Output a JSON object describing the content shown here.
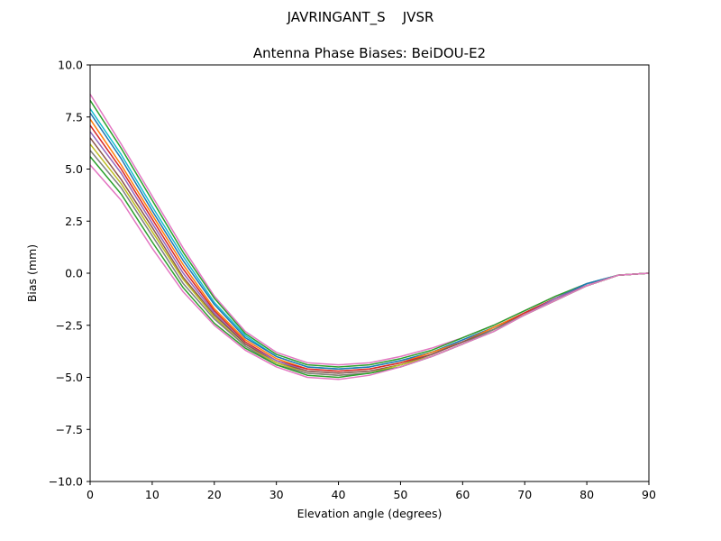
{
  "figure": {
    "suptitle": "JAVRINGANT_S    JVSR"
  },
  "chart_data": {
    "type": "line",
    "title": "Antenna Phase Biases: BeiDOU-E2",
    "xlabel": "Elevation angle (degrees)",
    "ylabel": "Bias (mm)",
    "xlim": [
      0,
      90
    ],
    "ylim": [
      -10,
      10
    ],
    "xticks": [
      0,
      10,
      20,
      30,
      40,
      50,
      60,
      70,
      80,
      90
    ],
    "yticks": [
      10.0,
      7.5,
      5.0,
      2.5,
      0.0,
      -2.5,
      -5.0,
      -7.5,
      -10.0
    ],
    "xtick_labels": [
      "0",
      "10",
      "20",
      "30",
      "40",
      "50",
      "60",
      "70",
      "80",
      "90"
    ],
    "ytick_labels": [
      "10.0",
      "7.5",
      "5.0",
      "2.5",
      "0.0",
      "−2.5",
      "−5.0",
      "−7.5",
      "−10.0"
    ],
    "grid": false,
    "legend": "none",
    "x": [
      0,
      5,
      10,
      15,
      20,
      25,
      30,
      35,
      40,
      45,
      50,
      55,
      60,
      65,
      70,
      75,
      80,
      85,
      90
    ],
    "series": [
      {
        "color": "#e377c2",
        "values": [
          8.6,
          6.2,
          3.7,
          1.2,
          -1.1,
          -2.8,
          -3.8,
          -4.3,
          -4.4,
          -4.3,
          -4.0,
          -3.6,
          -3.1,
          -2.5,
          -1.8,
          -1.1,
          -0.5,
          -0.1,
          0.0
        ]
      },
      {
        "color": "#2ca02c",
        "values": [
          8.3,
          6.0,
          3.5,
          1.0,
          -1.2,
          -2.9,
          -3.9,
          -4.4,
          -4.5,
          -4.4,
          -4.1,
          -3.7,
          -3.1,
          -2.5,
          -1.8,
          -1.1,
          -0.5,
          -0.1,
          0.0
        ]
      },
      {
        "color": "#17becf",
        "values": [
          7.9,
          5.7,
          3.2,
          0.8,
          -1.4,
          -3.0,
          -4.0,
          -4.5,
          -4.6,
          -4.5,
          -4.2,
          -3.8,
          -3.2,
          -2.6,
          -1.9,
          -1.2,
          -0.5,
          -0.1,
          0.0
        ]
      },
      {
        "color": "#1f77b4",
        "values": [
          7.7,
          5.5,
          3.0,
          0.6,
          -1.5,
          -3.1,
          -4.0,
          -4.5,
          -4.6,
          -4.5,
          -4.2,
          -3.8,
          -3.2,
          -2.6,
          -1.9,
          -1.2,
          -0.5,
          -0.1,
          0.0
        ]
      },
      {
        "color": "#ff7f0e",
        "values": [
          7.4,
          5.2,
          2.8,
          0.4,
          -1.7,
          -3.2,
          -4.1,
          -4.6,
          -4.7,
          -4.6,
          -4.3,
          -3.8,
          -3.3,
          -2.6,
          -1.9,
          -1.2,
          -0.6,
          -0.1,
          0.0
        ]
      },
      {
        "color": "#d62728",
        "values": [
          7.1,
          5.0,
          2.6,
          0.2,
          -1.8,
          -3.3,
          -4.2,
          -4.6,
          -4.7,
          -4.6,
          -4.3,
          -3.9,
          -3.3,
          -2.7,
          -1.9,
          -1.2,
          -0.6,
          -0.1,
          0.0
        ]
      },
      {
        "color": "#9467bd",
        "values": [
          6.8,
          4.8,
          2.4,
          0.0,
          -1.9,
          -3.4,
          -4.2,
          -4.7,
          -4.8,
          -4.7,
          -4.4,
          -3.9,
          -3.3,
          -2.7,
          -2.0,
          -1.2,
          -0.6,
          -0.1,
          0.0
        ]
      },
      {
        "color": "#8c564b",
        "values": [
          6.5,
          4.5,
          2.2,
          -0.2,
          -2.0,
          -3.4,
          -4.3,
          -4.7,
          -4.8,
          -4.7,
          -4.4,
          -3.9,
          -3.3,
          -2.7,
          -2.0,
          -1.3,
          -0.6,
          -0.1,
          0.0
        ]
      },
      {
        "color": "#bcbd22",
        "values": [
          6.2,
          4.3,
          2.0,
          -0.3,
          -2.1,
          -3.5,
          -4.3,
          -4.8,
          -4.9,
          -4.8,
          -4.4,
          -4.0,
          -3.4,
          -2.7,
          -2.0,
          -1.3,
          -0.6,
          -0.1,
          0.0
        ]
      },
      {
        "color": "#7f7f7f",
        "values": [
          5.9,
          4.1,
          1.8,
          -0.5,
          -2.2,
          -3.5,
          -4.4,
          -4.8,
          -4.9,
          -4.8,
          -4.5,
          -4.0,
          -3.4,
          -2.7,
          -2.0,
          -1.3,
          -0.6,
          -0.1,
          0.0
        ]
      },
      {
        "color": "#2ca02c",
        "values": [
          5.6,
          3.8,
          1.5,
          -0.7,
          -2.4,
          -3.6,
          -4.4,
          -4.9,
          -5.0,
          -4.8,
          -4.5,
          -4.0,
          -3.4,
          -2.8,
          -2.0,
          -1.3,
          -0.6,
          -0.1,
          0.0
        ]
      },
      {
        "color": "#e377c2",
        "values": [
          5.2,
          3.5,
          1.2,
          -0.9,
          -2.5,
          -3.7,
          -4.5,
          -5.0,
          -5.1,
          -4.9,
          -4.5,
          -4.0,
          -3.4,
          -2.8,
          -2.0,
          -1.3,
          -0.6,
          -0.1,
          0.0
        ]
      }
    ]
  }
}
